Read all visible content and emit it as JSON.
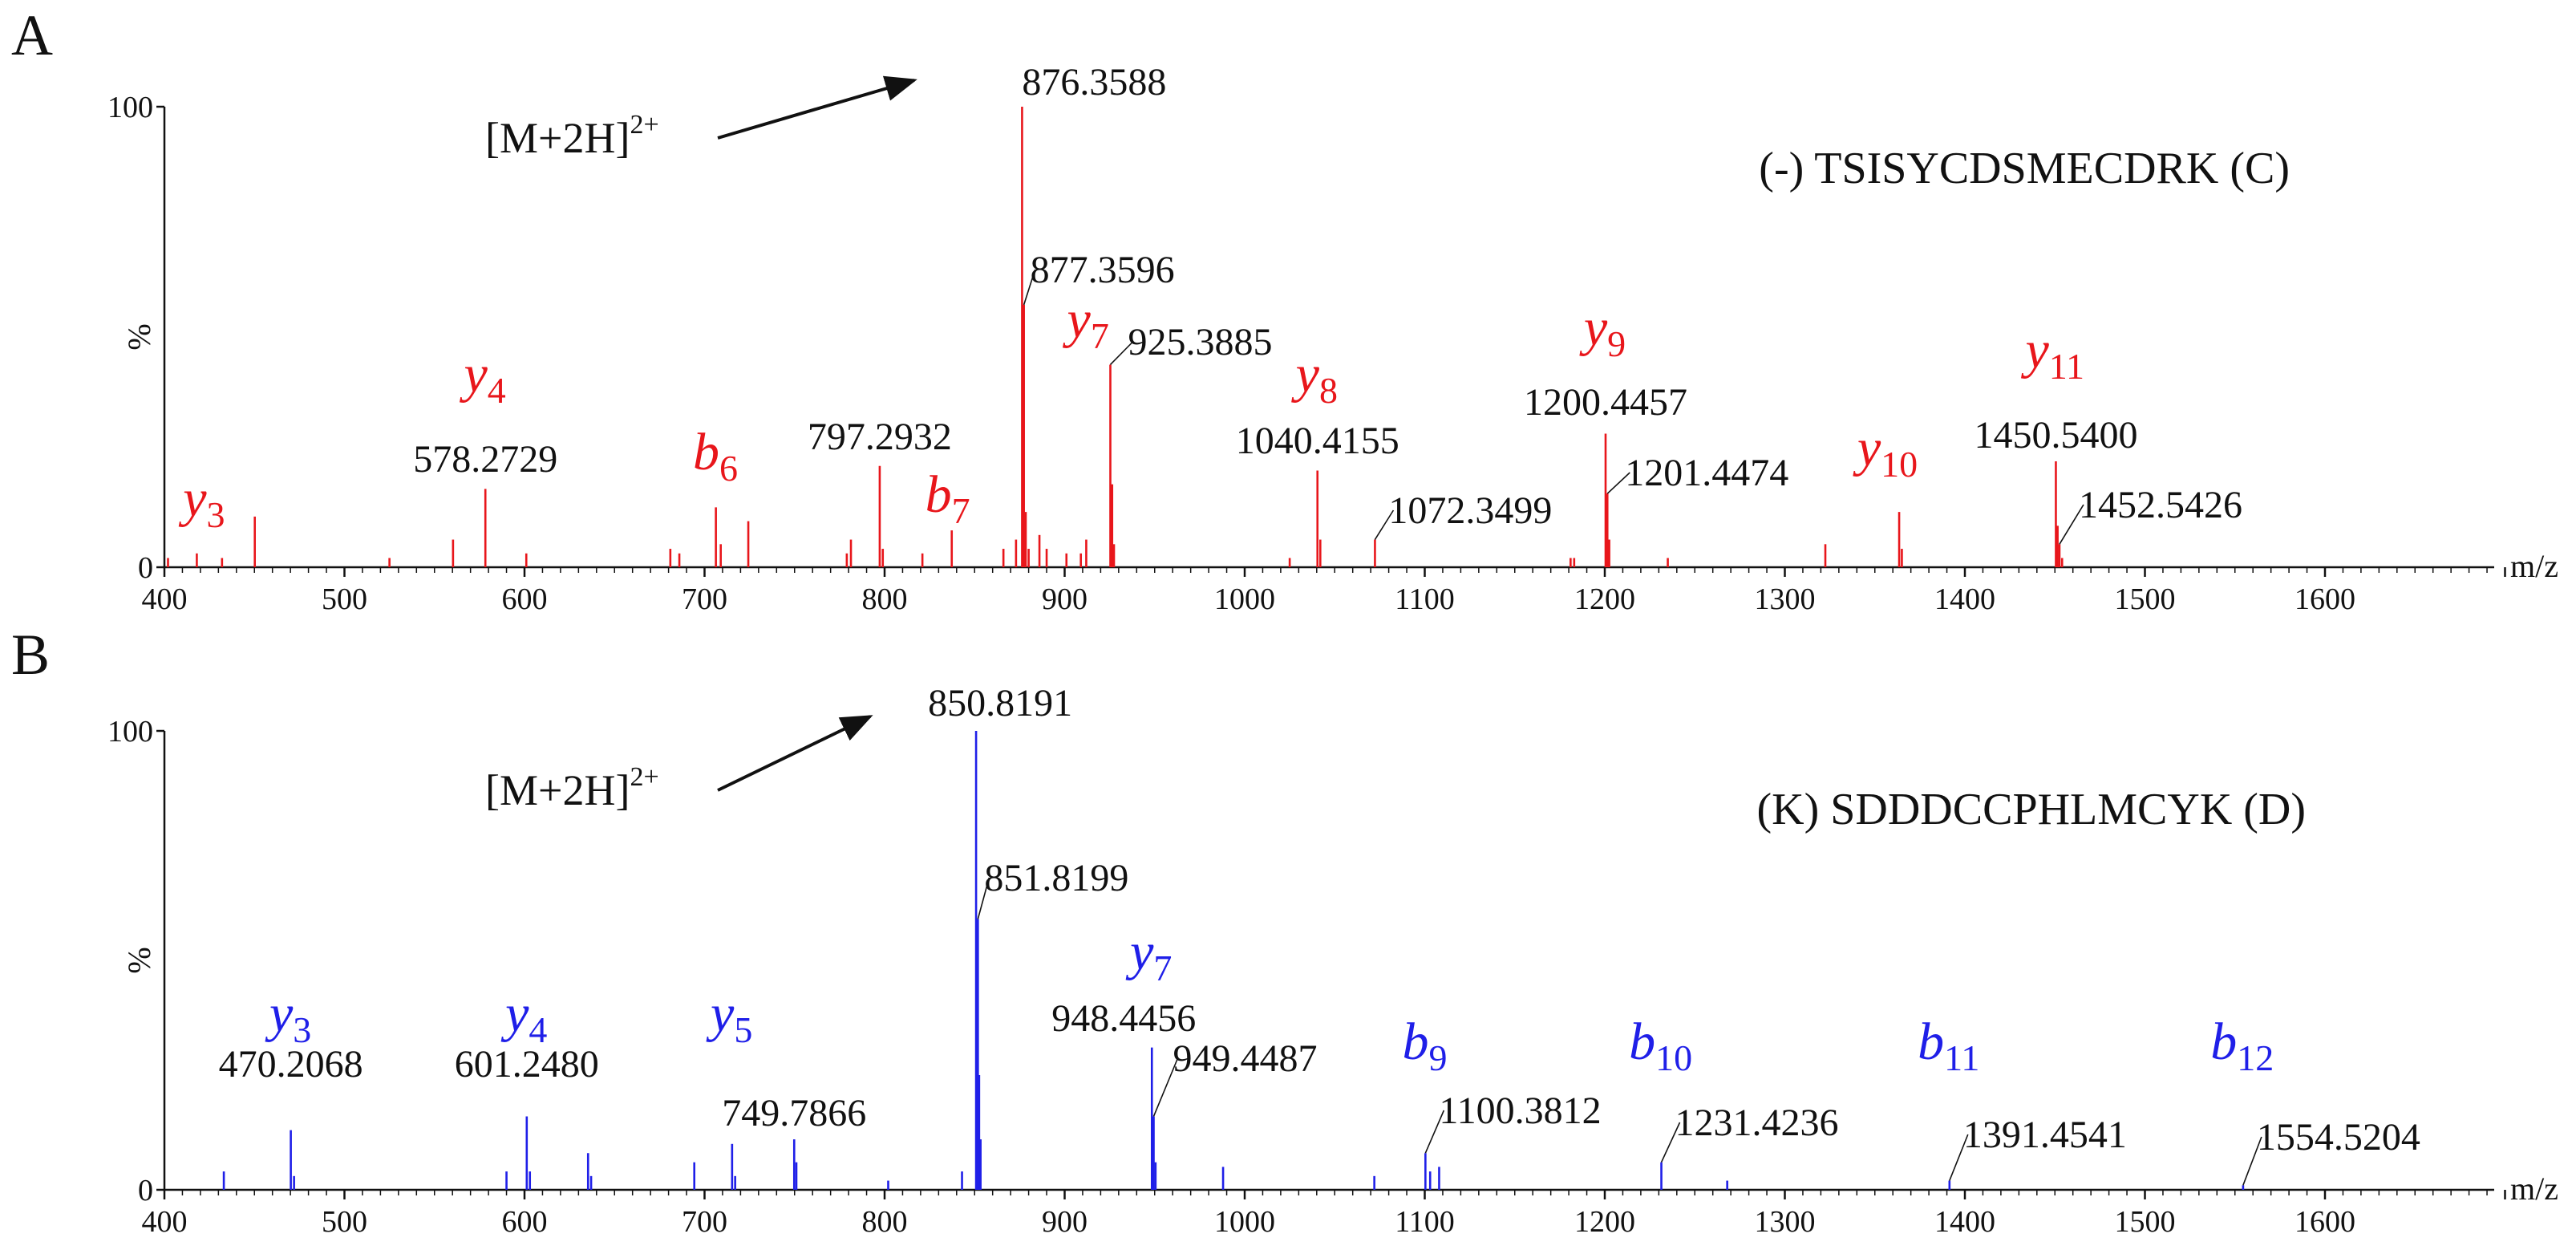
{
  "colors": {
    "panelA": "#e8161b",
    "panelB": "#1f1fe8",
    "axis": "#111111"
  },
  "chart_data": [
    {
      "type": "bar",
      "panel": "A",
      "title": "(-) TSISYCDSMECDRK (C)",
      "xlabel": "m/z",
      "ylabel": "%",
      "xlim": [
        400,
        1700
      ],
      "ylim": [
        0,
        100
      ],
      "xticks": [
        400,
        500,
        600,
        700,
        800,
        900,
        1000,
        1100,
        1200,
        1300,
        1400,
        1500,
        1600
      ],
      "yticks": [
        0,
        100
      ],
      "precursor": {
        "prefix": "[M+2H]",
        "charge": "2+",
        "mz": "876.3588"
      },
      "peaks": [
        {
          "mz": 402,
          "i": 2
        },
        {
          "mz": 418,
          "i": 3
        },
        {
          "mz": 432,
          "i": 2
        },
        {
          "mz": 450.2,
          "i": 11
        },
        {
          "mz": 525,
          "i": 2
        },
        {
          "mz": 560.3,
          "i": 6
        },
        {
          "mz": 578.2729,
          "i": 17
        },
        {
          "mz": 601,
          "i": 3
        },
        {
          "mz": 681,
          "i": 4
        },
        {
          "mz": 686,
          "i": 3
        },
        {
          "mz": 706.3,
          "i": 13
        },
        {
          "mz": 709,
          "i": 5
        },
        {
          "mz": 724.3,
          "i": 10
        },
        {
          "mz": 779,
          "i": 3
        },
        {
          "mz": 781.3,
          "i": 6
        },
        {
          "mz": 797.2932,
          "i": 22
        },
        {
          "mz": 799,
          "i": 4
        },
        {
          "mz": 821,
          "i": 3
        },
        {
          "mz": 837.3,
          "i": 8
        },
        {
          "mz": 866,
          "i": 4
        },
        {
          "mz": 873,
          "i": 6
        },
        {
          "mz": 876.3588,
          "i": 100
        },
        {
          "mz": 877.3596,
          "i": 57
        },
        {
          "mz": 878.4,
          "i": 12
        },
        {
          "mz": 880,
          "i": 4
        },
        {
          "mz": 886,
          "i": 7
        },
        {
          "mz": 890,
          "i": 4
        },
        {
          "mz": 901,
          "i": 3
        },
        {
          "mz": 909,
          "i": 3
        },
        {
          "mz": 912,
          "i": 6
        },
        {
          "mz": 925.3885,
          "i": 44
        },
        {
          "mz": 926.4,
          "i": 18
        },
        {
          "mz": 927.4,
          "i": 5
        },
        {
          "mz": 1025,
          "i": 2
        },
        {
          "mz": 1040.4155,
          "i": 21
        },
        {
          "mz": 1042,
          "i": 6
        },
        {
          "mz": 1072.3499,
          "i": 6
        },
        {
          "mz": 1181,
          "i": 2
        },
        {
          "mz": 1183,
          "i": 2
        },
        {
          "mz": 1200.4457,
          "i": 29
        },
        {
          "mz": 1201.4474,
          "i": 16
        },
        {
          "mz": 1202.5,
          "i": 6
        },
        {
          "mz": 1235,
          "i": 2
        },
        {
          "mz": 1322.5,
          "i": 5
        },
        {
          "mz": 1363.5,
          "i": 12
        },
        {
          "mz": 1365,
          "i": 4
        },
        {
          "mz": 1450.54,
          "i": 23
        },
        {
          "mz": 1451.5,
          "i": 9
        },
        {
          "mz": 1452.5426,
          "i": 5
        },
        {
          "mz": 1454,
          "i": 2
        }
      ],
      "labels": [
        {
          "mz": 876.3588,
          "text": "876.3588",
          "arrow": true
        },
        {
          "mz": 877.3596,
          "text": "877.3596",
          "leader": true
        },
        {
          "mz": 925.3885,
          "text": "925.3885",
          "leader": true
        },
        {
          "mz": 578.2729,
          "text": "578.2729"
        },
        {
          "mz": 797.2932,
          "text": "797.2932"
        },
        {
          "mz": 1040.4155,
          "text": "1040.4155"
        },
        {
          "mz": 1200.4457,
          "text": "1200.4457"
        },
        {
          "mz": 1072.3499,
          "text": "1072.3499",
          "leader": true
        },
        {
          "mz": 1201.4474,
          "text": "1201.4474",
          "leader": true
        },
        {
          "mz": 1450.54,
          "text": "1450.5400"
        },
        {
          "mz": 1452.5426,
          "text": "1452.5426",
          "leader": true
        }
      ],
      "ions": [
        {
          "letter": "y",
          "sub": "3",
          "mz": 422
        },
        {
          "letter": "y",
          "sub": "4",
          "mz": 578
        },
        {
          "letter": "b",
          "sub": "6",
          "mz": 706
        },
        {
          "letter": "b",
          "sub": "7",
          "mz": 835
        },
        {
          "letter": "y",
          "sub": "7",
          "mz": 913
        },
        {
          "letter": "y",
          "sub": "8",
          "mz": 1040
        },
        {
          "letter": "y",
          "sub": "9",
          "mz": 1200
        },
        {
          "letter": "y",
          "sub": "10",
          "mz": 1357
        },
        {
          "letter": "y",
          "sub": "11",
          "mz": 1450
        }
      ]
    },
    {
      "type": "bar",
      "panel": "B",
      "title": "(K) SDDDCCPHLMCYK (D)",
      "xlabel": "m/z",
      "ylabel": "%",
      "xlim": [
        400,
        1700
      ],
      "ylim": [
        0,
        100
      ],
      "xticks": [
        400,
        500,
        600,
        700,
        800,
        900,
        1000,
        1100,
        1200,
        1300,
        1400,
        1500,
        1600
      ],
      "yticks": [
        0,
        100
      ],
      "precursor": {
        "prefix": "[M+2H]",
        "charge": "2+",
        "mz": "850.8191"
      },
      "peaks": [
        {
          "mz": 433,
          "i": 4
        },
        {
          "mz": 470.2068,
          "i": 13
        },
        {
          "mz": 472,
          "i": 3
        },
        {
          "mz": 590,
          "i": 4
        },
        {
          "mz": 601.248,
          "i": 16
        },
        {
          "mz": 603,
          "i": 4
        },
        {
          "mz": 635.3,
          "i": 8
        },
        {
          "mz": 637,
          "i": 3
        },
        {
          "mz": 694.3,
          "i": 6
        },
        {
          "mz": 715.3,
          "i": 10
        },
        {
          "mz": 717,
          "i": 3
        },
        {
          "mz": 749.7866,
          "i": 11
        },
        {
          "mz": 751,
          "i": 6
        },
        {
          "mz": 802,
          "i": 2
        },
        {
          "mz": 843,
          "i": 4
        },
        {
          "mz": 850.8191,
          "i": 100
        },
        {
          "mz": 851.8199,
          "i": 59
        },
        {
          "mz": 852.5,
          "i": 25
        },
        {
          "mz": 853.3,
          "i": 11
        },
        {
          "mz": 948.4456,
          "i": 31
        },
        {
          "mz": 949.4487,
          "i": 16
        },
        {
          "mz": 950.5,
          "i": 6
        },
        {
          "mz": 988,
          "i": 5
        },
        {
          "mz": 1072,
          "i": 3
        },
        {
          "mz": 1100.3812,
          "i": 8
        },
        {
          "mz": 1103,
          "i": 4
        },
        {
          "mz": 1108,
          "i": 5
        },
        {
          "mz": 1231.4236,
          "i": 6
        },
        {
          "mz": 1268,
          "i": 2
        },
        {
          "mz": 1391.4541,
          "i": 2
        },
        {
          "mz": 1554.5204,
          "i": 1
        }
      ],
      "labels": [
        {
          "mz": 850.8191,
          "text": "850.8191",
          "arrow": true
        },
        {
          "mz": 851.8199,
          "text": "851.8199",
          "leader": true
        },
        {
          "mz": 948.4456,
          "text": "948.4456"
        },
        {
          "mz": 949.4487,
          "text": "949.4487",
          "leader": true
        },
        {
          "mz": 470.2068,
          "text": "470.2068"
        },
        {
          "mz": 601.248,
          "text": "601.2480"
        },
        {
          "mz": 749.7866,
          "text": "749.7866"
        },
        {
          "mz": 1100.3812,
          "text": "1100.3812",
          "leader": true
        },
        {
          "mz": 1231.4236,
          "text": "1231.4236",
          "leader": true
        },
        {
          "mz": 1391.4541,
          "text": "1391.4541",
          "leader": true
        },
        {
          "mz": 1554.5204,
          "text": "1554.5204",
          "leader": true
        }
      ],
      "ions": [
        {
          "letter": "y",
          "sub": "3",
          "mz": 470
        },
        {
          "letter": "y",
          "sub": "4",
          "mz": 601
        },
        {
          "letter": "y",
          "sub": "5",
          "mz": 715
        },
        {
          "letter": "y",
          "sub": "7",
          "mz": 948
        },
        {
          "letter": "b",
          "sub": "9",
          "mz": 1100
        },
        {
          "letter": "b",
          "sub": "10",
          "mz": 1231
        },
        {
          "letter": "b",
          "sub": "11",
          "mz": 1391
        },
        {
          "letter": "b",
          "sub": "12",
          "mz": 1554
        }
      ]
    }
  ]
}
